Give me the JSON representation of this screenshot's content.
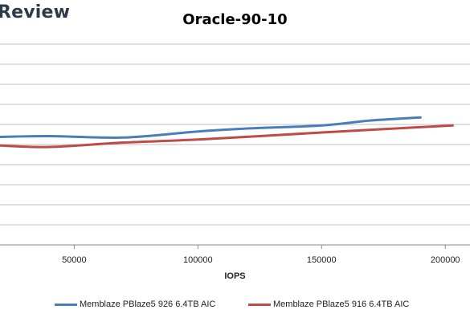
{
  "brand": {
    "text": "Review"
  },
  "colors": {
    "series1": "#4a7ebb",
    "series2": "#be4b48",
    "gridline": "#bfbfbf"
  },
  "chart_data": {
    "type": "line",
    "title": "Oracle-90-10",
    "xlabel": "IOPS",
    "ylabel": "",
    "xlim": [
      20000,
      210000
    ],
    "ylim": [
      0,
      10
    ],
    "x_ticks": [
      50000,
      100000,
      150000,
      200000
    ],
    "x_tick_labels": [
      "50000",
      "100000",
      "150000",
      "200000"
    ],
    "grid": true,
    "legend_position": "bottom",
    "series": [
      {
        "name": "Memblaze PBlaze5 926 6.4TB AIC",
        "x": [
          20000,
          40000,
          70000,
          100000,
          120000,
          150000,
          170000,
          190000
        ],
        "y": [
          5.38,
          5.42,
          5.35,
          5.65,
          5.8,
          5.95,
          6.2,
          6.35
        ]
      },
      {
        "name": "Memblaze PBlaze5 916 6.4TB AIC",
        "x": [
          20000,
          40000,
          70000,
          100000,
          150000,
          180000,
          203000
        ],
        "y": [
          4.95,
          4.88,
          5.1,
          5.25,
          5.6,
          5.8,
          5.95
        ]
      }
    ]
  }
}
